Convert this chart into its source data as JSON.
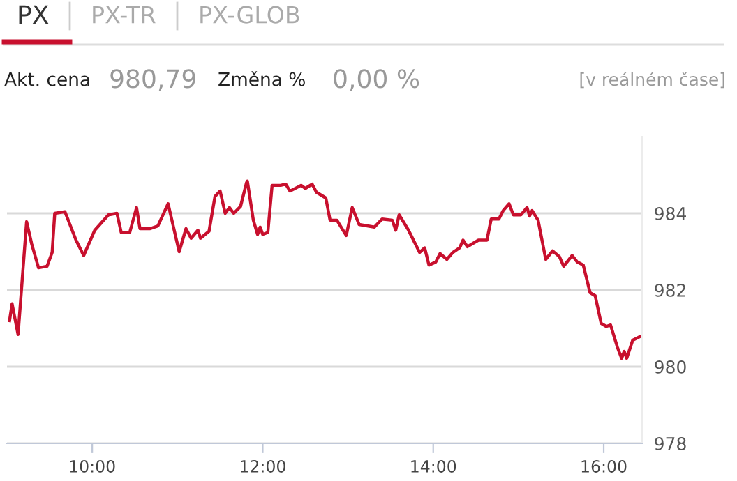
{
  "chart_data": {
    "type": "line",
    "title": "PX",
    "annotations": [
      "PX-TR",
      "PX-GLOB",
      "Akt. cena",
      "980,79",
      "Změna %",
      "0,00 %",
      "[v reálném čase]"
    ],
    "series": [
      {
        "color": "#c8102e",
        "x": [
          9.03,
          9.06,
          9.13,
          9.23,
          9.29,
          9.37,
          9.47,
          9.53,
          9.56,
          9.68,
          9.81,
          9.9,
          10.03,
          10.19,
          10.29,
          10.34,
          10.44,
          10.52,
          10.56,
          10.68,
          10.77,
          10.89,
          11.02,
          11.1,
          11.16,
          11.24,
          11.27,
          11.37,
          11.44,
          11.5,
          11.56,
          11.61,
          11.66,
          11.74,
          11.81,
          11.82,
          11.89,
          11.94,
          11.97,
          12.0,
          12.06,
          12.11,
          12.21,
          12.27,
          12.32,
          12.45,
          12.5,
          12.58,
          12.63,
          12.74,
          12.79,
          12.87,
          12.98,
          13.05,
          13.13,
          13.31,
          13.4,
          13.52,
          13.56,
          13.6,
          13.71,
          13.84,
          13.9,
          13.95,
          14.03,
          14.08,
          14.16,
          14.23,
          14.31,
          14.35,
          14.4,
          14.53,
          14.63,
          14.68,
          14.77,
          14.82,
          14.89,
          14.94,
          15.03,
          15.1,
          15.13,
          15.16,
          15.23,
          15.32,
          15.4,
          15.48,
          15.53,
          15.63,
          15.69,
          15.76,
          15.84,
          15.9,
          15.97,
          16.03,
          16.08,
          16.16,
          16.21,
          16.24,
          16.27,
          16.34,
          16.44
        ],
        "values": [
          981.2,
          981.64,
          980.84,
          983.78,
          983.2,
          982.58,
          982.62,
          982.98,
          984.0,
          984.04,
          983.3,
          982.9,
          983.56,
          983.96,
          984.0,
          983.5,
          983.5,
          984.15,
          983.6,
          983.6,
          983.67,
          984.25,
          983.0,
          983.6,
          983.35,
          983.56,
          983.35,
          983.53,
          984.44,
          984.58,
          984.0,
          984.15,
          984.0,
          984.18,
          984.8,
          984.84,
          983.82,
          983.45,
          983.64,
          983.45,
          983.5,
          984.73,
          984.73,
          984.76,
          984.58,
          984.73,
          984.65,
          984.76,
          984.55,
          984.4,
          983.82,
          983.82,
          983.42,
          984.15,
          983.71,
          983.64,
          983.85,
          983.82,
          983.56,
          983.96,
          983.56,
          982.98,
          983.1,
          982.65,
          982.73,
          982.95,
          982.8,
          982.98,
          983.1,
          983.3,
          983.13,
          983.3,
          983.3,
          983.85,
          983.85,
          984.07,
          984.25,
          983.96,
          983.96,
          984.15,
          983.93,
          984.07,
          983.82,
          982.8,
          983.02,
          982.87,
          982.62,
          982.9,
          982.73,
          982.65,
          981.93,
          981.85,
          981.13,
          981.05,
          981.09,
          980.51,
          980.22,
          980.4,
          980.22,
          980.69,
          980.8
        ]
      }
    ],
    "xlim": [
      9.0,
      16.45
    ],
    "xticks": [
      {
        "value": 10,
        "label": "10:00"
      },
      {
        "value": 12,
        "label": "12:00"
      },
      {
        "value": 14,
        "label": "14:00"
      },
      {
        "value": 16,
        "label": "16:00"
      }
    ],
    "ylim": [
      978,
      986
    ],
    "yticks": [
      978,
      980,
      982,
      984
    ],
    "grid": "y",
    "line_style": "solid"
  }
}
